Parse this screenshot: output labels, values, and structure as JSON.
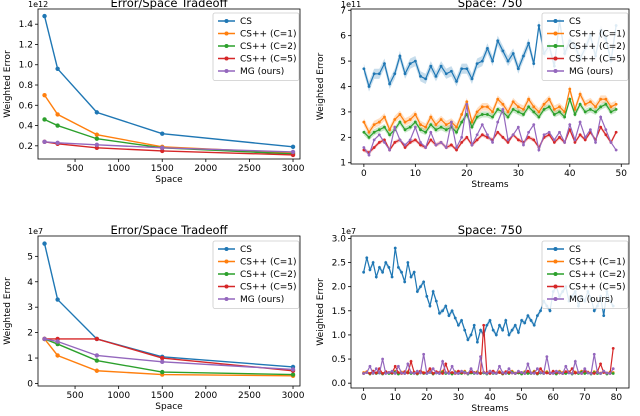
{
  "colors": {
    "CS": "#1f77b4",
    "CS++ (C=1)": "#ff7f0e",
    "CS++ (C=2)": "#2ca02c",
    "CS++ (C=5)": "#d62728",
    "MG (ours)": "#9467bd"
  },
  "chart_data": [
    {
      "type": "line",
      "title": "Error/Space Tradeoff",
      "xlabel": "Space",
      "ylabel": "Weighted Error",
      "exponent_label": "1e12",
      "xlim": [
        75,
        3080
      ],
      "ylim": [
        0.07,
        1.55
      ],
      "xticks": [
        500,
        1000,
        1500,
        2000,
        2500,
        3000
      ],
      "yticks": [
        0.2,
        0.4,
        0.6,
        0.8,
        1.0,
        1.2,
        1.4
      ],
      "ytick_labels": [
        "0.2",
        "0.4",
        "0.6",
        "0.8",
        "1.0",
        "1.2",
        "1.4"
      ],
      "legend_position": "top-right",
      "x": [
        150,
        300,
        750,
        1500,
        3000
      ],
      "series": [
        {
          "name": "CS",
          "values": [
            1.48,
            0.96,
            0.53,
            0.32,
            0.19
          ]
        },
        {
          "name": "CS++ (C=1)",
          "values": [
            0.7,
            0.51,
            0.31,
            0.19,
            0.13
          ]
        },
        {
          "name": "CS++ (C=2)",
          "values": [
            0.46,
            0.4,
            0.27,
            0.18,
            0.12
          ]
        },
        {
          "name": "CS++ (C=5)",
          "values": [
            0.24,
            0.22,
            0.18,
            0.15,
            0.11
          ]
        },
        {
          "name": "MG (ours)",
          "values": [
            0.24,
            0.23,
            0.21,
            0.18,
            0.14
          ]
        }
      ]
    },
    {
      "type": "line",
      "title": "Space: 750",
      "xlabel": "Streams",
      "ylabel": "Weighted Error",
      "exponent_label": "1e11",
      "xlim": [
        -2.5,
        51.5
      ],
      "ylim": [
        0.95,
        7.05
      ],
      "xticks": [
        0,
        10,
        20,
        30,
        40,
        50
      ],
      "yticks": [
        1,
        2,
        3,
        4,
        5,
        6,
        7
      ],
      "ytick_labels": [
        "1",
        "2",
        "3",
        "4",
        "5",
        "6",
        "7"
      ],
      "legend_position": "top-right",
      "x": [
        0,
        1,
        2,
        3,
        4,
        5,
        6,
        7,
        8,
        9,
        10,
        11,
        12,
        13,
        14,
        15,
        16,
        17,
        18,
        19,
        20,
        21,
        22,
        23,
        24,
        25,
        26,
        27,
        28,
        29,
        30,
        31,
        32,
        33,
        34,
        35,
        36,
        37,
        38,
        39,
        40,
        41,
        42,
        43,
        44,
        45,
        46,
        47,
        48,
        49
      ],
      "series": [
        {
          "name": "CS",
          "values": [
            4.7,
            4.0,
            4.5,
            4.5,
            4.9,
            4.1,
            4.5,
            5.2,
            4.5,
            4.9,
            5.0,
            4.4,
            4.3,
            4.8,
            4.4,
            4.8,
            4.5,
            4.6,
            4.2,
            4.7,
            4.7,
            4.3,
            4.9,
            5.0,
            5.5,
            5.0,
            5.8,
            5.4,
            5.0,
            5.3,
            4.7,
            5.2,
            5.7,
            4.9,
            6.4,
            5.3,
            5.6,
            4.8,
            6.6,
            5.3,
            5.8,
            5.6,
            5.1,
            5.5,
            6.0,
            5.2,
            6.2,
            5.9,
            5.0,
            6.4
          ],
          "band": 0.2
        },
        {
          "name": "CS++ (C=1)",
          "values": [
            2.6,
            2.2,
            2.5,
            2.6,
            2.8,
            2.3,
            2.7,
            2.9,
            2.6,
            2.7,
            2.9,
            2.5,
            2.4,
            2.8,
            2.5,
            2.7,
            2.5,
            2.6,
            2.4,
            2.9,
            3.4,
            2.6,
            3.0,
            3.2,
            3.2,
            3.0,
            3.5,
            3.3,
            3.0,
            3.4,
            3.2,
            3.1,
            3.5,
            3.2,
            3.0,
            3.3,
            3.5,
            3.1,
            3.2,
            3.0,
            3.9,
            3.1,
            3.7,
            3.3,
            3.4,
            3.2,
            3.5,
            3.5,
            3.2,
            3.3
          ],
          "band": 0.15
        },
        {
          "name": "CS++ (C=2)",
          "values": [
            2.2,
            2.0,
            2.2,
            2.3,
            2.4,
            2.1,
            2.3,
            2.6,
            2.3,
            2.4,
            2.6,
            2.3,
            2.2,
            2.5,
            2.3,
            2.4,
            2.3,
            2.4,
            2.2,
            2.6,
            2.9,
            2.4,
            2.8,
            2.9,
            2.9,
            2.8,
            3.1,
            3.0,
            2.8,
            3.1,
            3.0,
            2.9,
            3.2,
            3.0,
            2.8,
            3.1,
            3.2,
            2.9,
            3.0,
            2.8,
            3.5,
            2.9,
            3.3,
            3.0,
            3.1,
            3.0,
            3.2,
            3.3,
            3.0,
            3.1
          ],
          "band": 0.12
        },
        {
          "name": "CS++ (C=5)",
          "values": [
            1.5,
            1.4,
            1.6,
            1.8,
            1.9,
            1.5,
            1.8,
            1.9,
            1.6,
            1.8,
            1.9,
            1.7,
            1.6,
            1.9,
            1.7,
            1.8,
            1.6,
            1.7,
            1.5,
            1.8,
            2.0,
            1.7,
            1.9,
            2.1,
            2.0,
            1.9,
            2.2,
            2.0,
            1.8,
            2.1,
            1.9,
            1.8,
            2.0,
            1.9,
            1.6,
            2.0,
            2.1,
            1.8,
            2.0,
            1.8,
            2.3,
            1.8,
            2.1,
            1.9,
            2.2,
            1.9,
            2.4,
            2.1,
            1.8,
            2.2
          ],
          "band": 0.08
        },
        {
          "name": "MG (ours)",
          "values": [
            1.6,
            1.3,
            1.9,
            2.1,
            1.8,
            1.5,
            2.4,
            1.9,
            1.7,
            1.9,
            2.4,
            1.8,
            1.6,
            2.2,
            1.7,
            1.8,
            1.6,
            2.6,
            1.6,
            2.0,
            3.3,
            1.7,
            2.1,
            2.5,
            2.1,
            1.8,
            2.6,
            3.1,
            1.9,
            2.1,
            2.4,
            1.7,
            2.2,
            2.5,
            1.5,
            2.1,
            2.2,
            1.9,
            2.2,
            1.8,
            2.5,
            1.9,
            2.6,
            2.0,
            2.3,
            1.8,
            2.8,
            2.3,
            1.8,
            1.5
          ]
        }
      ]
    },
    {
      "type": "line",
      "title": "Error/Space Tradeoff",
      "xlabel": "Space",
      "ylabel": "Weighted Error",
      "exponent_label": "1e7",
      "xlim": [
        75,
        3080
      ],
      "ylim": [
        -0.1,
        5.8
      ],
      "xticks": [
        500,
        1000,
        1500,
        2000,
        2500,
        3000
      ],
      "yticks": [
        0,
        1,
        2,
        3,
        4,
        5
      ],
      "ytick_labels": [
        "0",
        "1",
        "2",
        "3",
        "4",
        "5"
      ],
      "legend_position": "top-right",
      "x": [
        150,
        300,
        750,
        1500,
        3000
      ],
      "series": [
        {
          "name": "CS",
          "values": [
            5.5,
            3.3,
            1.75,
            1.05,
            0.65
          ]
        },
        {
          "name": "CS++ (C=1)",
          "values": [
            1.75,
            1.1,
            0.5,
            0.35,
            0.3
          ]
        },
        {
          "name": "CS++ (C=2)",
          "values": [
            1.75,
            1.55,
            0.9,
            0.45,
            0.35
          ]
        },
        {
          "name": "CS++ (C=5)",
          "values": [
            1.75,
            1.75,
            1.75,
            1.0,
            0.5
          ]
        },
        {
          "name": "MG (ours)",
          "values": [
            1.75,
            1.65,
            1.1,
            0.85,
            0.55
          ]
        }
      ]
    },
    {
      "type": "line",
      "title": "Space: 750",
      "xlabel": "Streams",
      "ylabel": "Weighted Error",
      "exponent_label": "1e7",
      "xlim": [
        -4,
        84
      ],
      "ylim": [
        -0.1,
        3.05
      ],
      "xticks": [
        0,
        10,
        20,
        30,
        40,
        50,
        60,
        70,
        80
      ],
      "yticks": [
        0.0,
        0.5,
        1.0,
        1.5,
        2.0,
        2.5,
        3.0
      ],
      "ytick_labels": [
        "0.0",
        "0.5",
        "1.0",
        "1.5",
        "2.0",
        "2.5",
        "3.0"
      ],
      "legend_position": "top-right",
      "x": [
        0,
        1,
        2,
        3,
        4,
        5,
        6,
        7,
        8,
        9,
        10,
        11,
        12,
        13,
        14,
        15,
        16,
        17,
        18,
        19,
        20,
        21,
        22,
        23,
        24,
        25,
        26,
        27,
        28,
        29,
        30,
        31,
        32,
        33,
        34,
        35,
        36,
        37,
        38,
        39,
        40,
        41,
        42,
        43,
        44,
        45,
        46,
        47,
        48,
        49,
        50,
        51,
        52,
        53,
        54,
        55,
        56,
        57,
        58,
        59,
        60,
        61,
        62,
        63,
        64,
        65,
        66,
        67,
        68,
        69,
        70,
        71,
        72,
        73,
        74,
        75,
        76,
        77,
        78,
        79
      ],
      "series": [
        {
          "name": "CS",
          "values": [
            2.3,
            2.6,
            2.35,
            2.5,
            2.2,
            2.4,
            2.3,
            2.5,
            2.4,
            2.2,
            2.8,
            2.4,
            2.3,
            2.1,
            2.5,
            2.2,
            2.3,
            1.9,
            2.0,
            2.1,
            1.8,
            1.6,
            1.9,
            1.7,
            1.45,
            1.5,
            1.6,
            1.4,
            1.5,
            1.35,
            1.2,
            1.3,
            1.1,
            0.9,
            1.0,
            1.2,
            0.85,
            1.1,
            1.0,
            1.2,
            1.3,
            1.1,
            1.0,
            1.2,
            1.1,
            1.3,
            1.0,
            1.1,
            1.2,
            1.05,
            1.3,
            1.25,
            1.4,
            1.3,
            1.2,
            1.4,
            1.5,
            1.7,
            1.6,
            1.5,
            1.9,
            2.0,
            1.8,
            1.9,
            2.0,
            1.7,
            1.8,
            1.9,
            1.6,
            1.8,
            1.7,
            1.9,
            1.75,
            1.5,
            1.6,
            1.8,
            1.4,
            1.9,
            1.7,
            1.6
          ],
          "band": 0.05
        },
        {
          "name": "CS++ (C=1)",
          "values": [
            0.22,
            0.24,
            0.2,
            0.25,
            0.21,
            0.23,
            0.2,
            0.24,
            0.22,
            0.21,
            0.25,
            0.2,
            0.23,
            0.22,
            0.24,
            0.21,
            0.23,
            0.2,
            0.25,
            0.22,
            0.21,
            0.24,
            0.2,
            0.23,
            0.22,
            0.25,
            0.21,
            0.23,
            0.2,
            0.24,
            0.22,
            0.21,
            0.25,
            0.2,
            0.23,
            0.22,
            0.24,
            0.21,
            0.23,
            0.2,
            0.25,
            0.22,
            0.21,
            0.24,
            0.2,
            0.23,
            0.22,
            0.25,
            0.21,
            0.23,
            0.2,
            0.24,
            0.22,
            0.21,
            0.25,
            0.2,
            0.23,
            0.22,
            0.24,
            0.21,
            0.23,
            0.2,
            0.25,
            0.22,
            0.21,
            0.24,
            0.2,
            0.23,
            0.22,
            0.25,
            0.21,
            0.23,
            0.2,
            0.24,
            0.22,
            0.21,
            0.25,
            0.2,
            0.23,
            0.22
          ]
        },
        {
          "name": "CS++ (C=2)",
          "values": [
            0.2,
            0.22,
            0.19,
            0.23,
            0.2,
            0.21,
            0.19,
            0.22,
            0.2,
            0.2,
            0.23,
            0.19,
            0.21,
            0.2,
            0.22,
            0.2,
            0.21,
            0.19,
            0.23,
            0.2,
            0.2,
            0.22,
            0.19,
            0.21,
            0.2,
            0.23,
            0.2,
            0.21,
            0.19,
            0.22,
            0.2,
            0.2,
            0.23,
            0.19,
            0.21,
            0.2,
            0.22,
            0.2,
            0.21,
            0.19,
            0.23,
            0.2,
            0.2,
            0.22,
            0.19,
            0.21,
            0.2,
            0.23,
            0.2,
            0.21,
            0.19,
            0.22,
            0.2,
            0.2,
            0.23,
            0.19,
            0.21,
            0.2,
            0.22,
            0.2,
            0.21,
            0.19,
            0.23,
            0.2,
            0.2,
            0.22,
            0.19,
            0.21,
            0.2,
            0.23,
            0.2,
            0.21,
            0.19,
            0.22,
            0.2,
            0.2,
            0.23,
            0.19,
            0.21,
            0.2
          ]
        },
        {
          "name": "CS++ (C=5)",
          "values": [
            0.2,
            0.22,
            0.2,
            0.25,
            0.21,
            0.3,
            0.2,
            0.24,
            0.22,
            0.21,
            0.35,
            0.22,
            0.2,
            0.24,
            0.21,
            0.45,
            0.22,
            0.2,
            0.25,
            0.21,
            0.22,
            0.3,
            0.2,
            0.24,
            0.22,
            0.2,
            0.4,
            0.21,
            0.22,
            0.2,
            0.25,
            0.22,
            0.21,
            0.2,
            0.23,
            0.22,
            0.21,
            0.2,
            1.2,
            0.22,
            0.2,
            0.25,
            0.21,
            0.22,
            0.2,
            0.24,
            0.22,
            0.21,
            0.2,
            0.23,
            0.22,
            0.2,
            0.25,
            0.21,
            0.22,
            0.2,
            0.3,
            0.22,
            0.21,
            0.2,
            0.25,
            0.22,
            0.21,
            0.2,
            0.24,
            0.22,
            0.3,
            0.21,
            0.22,
            0.2,
            0.25,
            0.22,
            0.21,
            0.2,
            0.24,
            0.4,
            0.22,
            0.21,
            0.2,
            0.72
          ]
        },
        {
          "name": "MG (ours)",
          "values": [
            0.2,
            0.22,
            0.35,
            0.2,
            0.3,
            0.21,
            0.5,
            0.2,
            0.22,
            0.25,
            0.2,
            0.35,
            0.21,
            0.2,
            0.4,
            0.22,
            0.2,
            0.25,
            0.21,
            0.6,
            0.2,
            0.22,
            0.3,
            0.21,
            0.2,
            0.45,
            0.22,
            0.2,
            0.35,
            0.21,
            0.2,
            0.25,
            0.22,
            0.2,
            0.3,
            0.21,
            0.2,
            0.55,
            0.22,
            0.2,
            0.25,
            0.21,
            0.2,
            0.35,
            0.22,
            0.2,
            0.3,
            0.21,
            0.2,
            0.25,
            0.22,
            0.2,
            0.4,
            0.21,
            0.2,
            0.3,
            0.22,
            0.2,
            0.55,
            0.21,
            0.2,
            0.25,
            0.22,
            0.2,
            0.35,
            0.21,
            0.2,
            0.45,
            0.22,
            0.2,
            0.3,
            0.21,
            0.2,
            0.6,
            0.22,
            0.2,
            0.25,
            0.21,
            0.2,
            0.3
          ]
        }
      ]
    }
  ]
}
